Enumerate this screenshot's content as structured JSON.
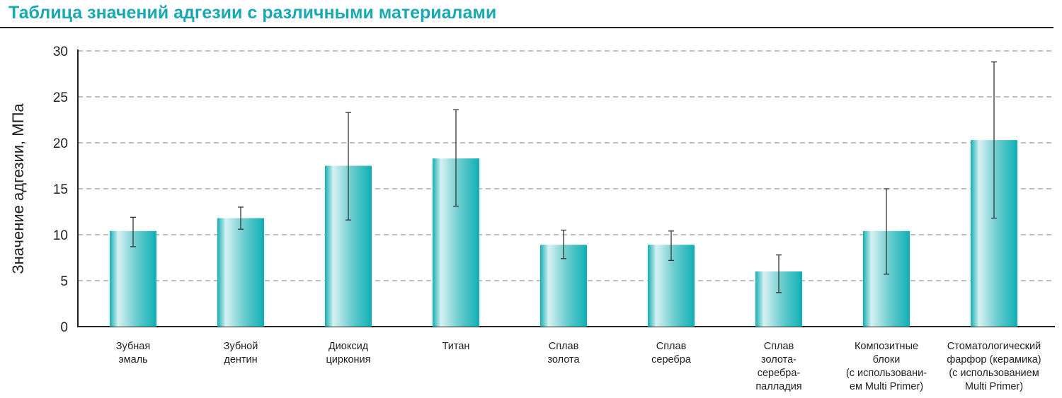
{
  "chart_data": {
    "type": "bar",
    "title": "Таблица значений адгезии с различными материалами",
    "xlabel": "",
    "ylabel": "Значение адгезии, МПа",
    "ylim": [
      0,
      30
    ],
    "yticks": [
      0,
      5,
      10,
      15,
      20,
      25,
      30
    ],
    "grid": "horizontal dashed",
    "bar_color": "#13b3b8",
    "categories": [
      [
        "Зубная",
        "эмаль"
      ],
      [
        "Зубной",
        "дентин"
      ],
      [
        "Диоксид",
        "циркония"
      ],
      [
        "Титан"
      ],
      [
        "Сплав",
        "золота"
      ],
      [
        "Сплав",
        "серебра"
      ],
      [
        "Сплав",
        "золота-",
        "серебра-",
        "палладия"
      ],
      [
        "Композитные",
        "блоки",
        "(с использовани-",
        "ем Multi Primer)"
      ],
      [
        "Стоматологический",
        "фарфор (керамика)",
        "(с использованием",
        "Multi Primer)"
      ]
    ],
    "values": [
      10.4,
      11.8,
      17.5,
      18.3,
      8.9,
      8.9,
      6.0,
      10.4,
      20.3
    ],
    "error_high": [
      11.9,
      13.0,
      23.3,
      23.6,
      10.5,
      10.4,
      7.8,
      15.0,
      28.8
    ],
    "error_low": [
      8.7,
      10.6,
      11.6,
      13.1,
      7.4,
      7.2,
      3.7,
      5.7,
      11.8
    ]
  }
}
